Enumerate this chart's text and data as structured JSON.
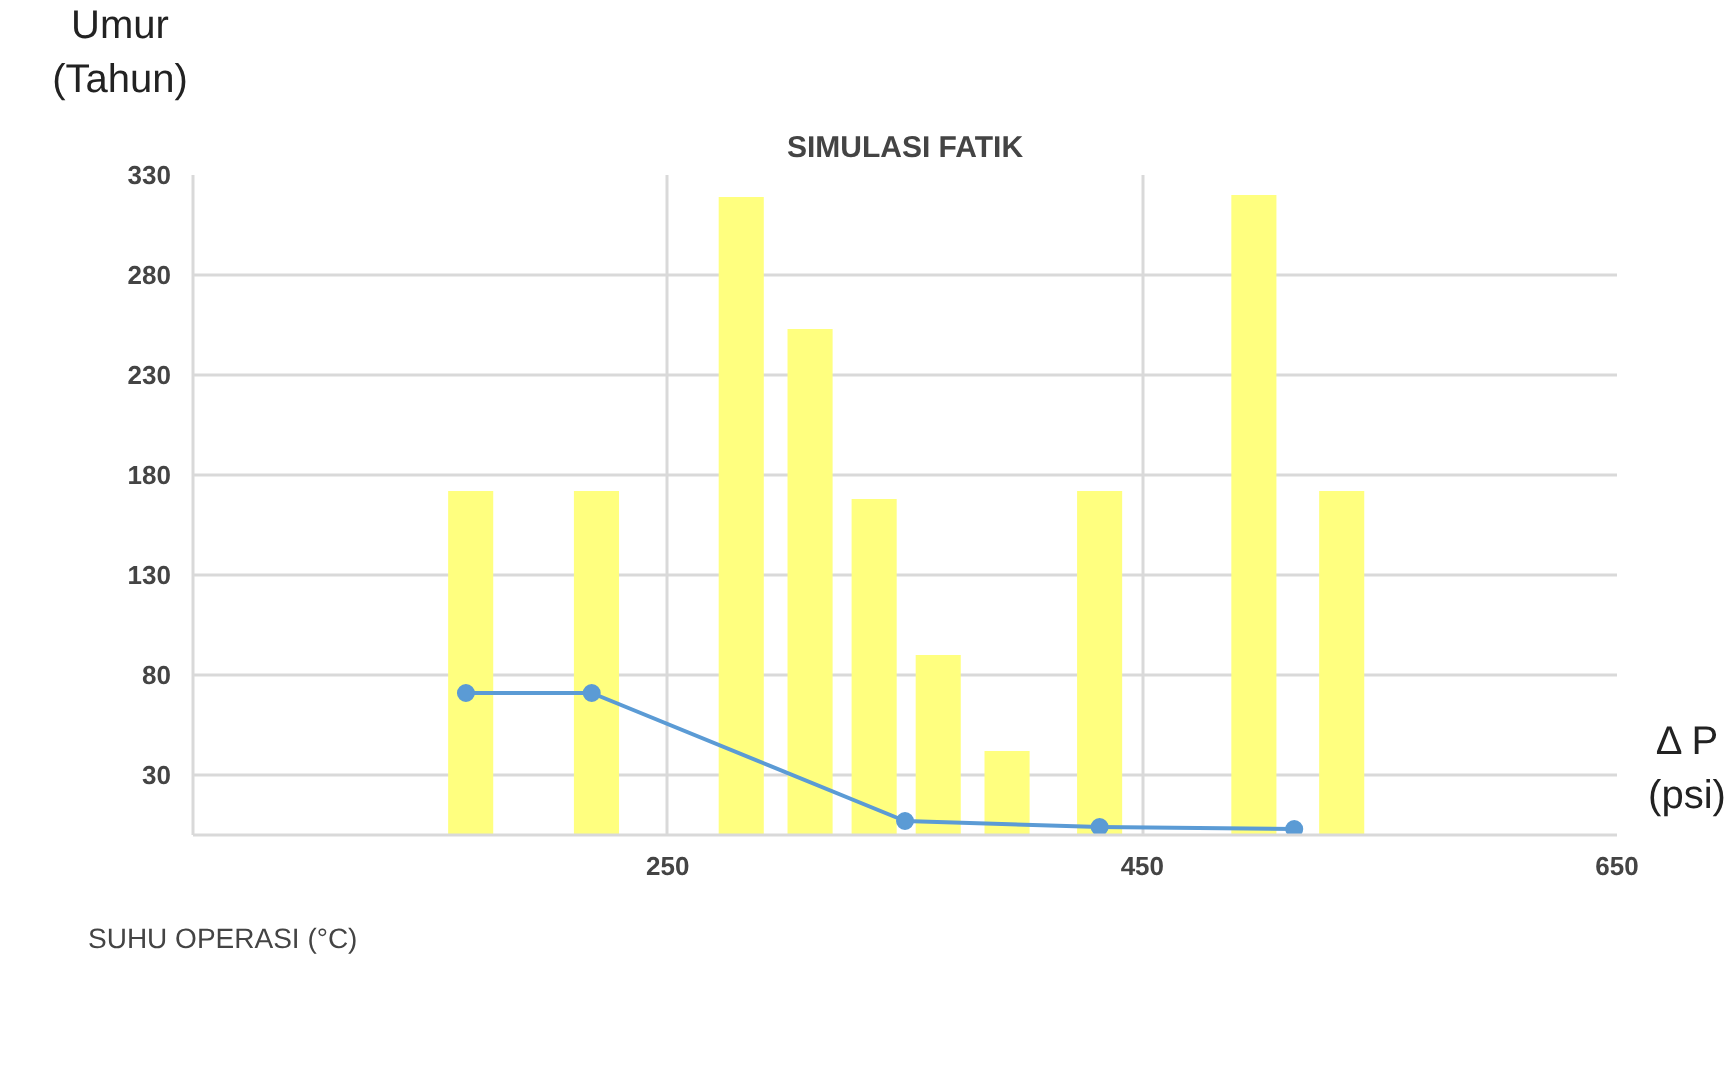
{
  "chart_data": {
    "type": "bar",
    "title": "SIMULASI FATIK",
    "ylabel": "Umur\n(Tahun)",
    "xlabel": "Δ P\n(psi)",
    "xlim": [
      50,
      650
    ],
    "xticks": [
      {
        "value": 50,
        "label": null
      },
      250,
      450,
      650
    ],
    "ylim": [
      0,
      330
    ],
    "yticks": [
      30,
      80,
      130,
      180,
      230,
      280,
      330
    ],
    "grid": true,
    "legend": "bottom left",
    "marker": "circle",
    "line_style": "solid",
    "series": [
      {
        "name": "SUHU OPERASI (°C)",
        "color": "#ffff7f",
        "x": [
          167,
          220,
          281,
          310,
          337,
          364,
          393,
          432,
          497,
          534
        ],
        "values": [
          172,
          172,
          319,
          253,
          168,
          90,
          42,
          172,
          320,
          172
        ]
      },
      {
        "type": "line",
        "color": "#5b9bd5",
        "x": [
          165,
          218,
          350,
          432,
          514
        ],
        "values": [
          71,
          71,
          7,
          4,
          3
        ]
      }
    ]
  }
}
